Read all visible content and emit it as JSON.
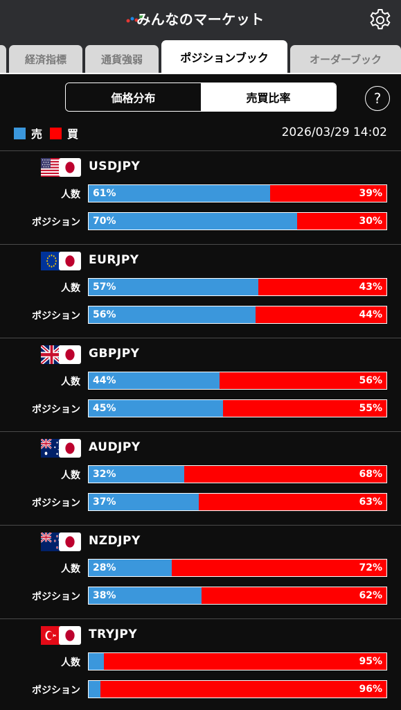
{
  "header": {
    "title": "みんなのマーケット",
    "logo_icon": "app-logo-icon",
    "settings_icon": "gear-icon"
  },
  "tabs": [
    {
      "label": "",
      "active": false
    },
    {
      "label": "経済指標",
      "active": false
    },
    {
      "label": "通貨強弱",
      "active": false
    },
    {
      "label": "ポジションブック",
      "active": true
    },
    {
      "label": "オーダーブック",
      "active": false
    }
  ],
  "segment": {
    "left": "価格分布",
    "right": "売買比率",
    "selected": "売買比率"
  },
  "help_label": "?",
  "legend": {
    "sell_label": "売",
    "buy_label": "買",
    "sell_color": "#3b97dc",
    "buy_color": "#ff0000"
  },
  "timestamp": "2026/03/29 14:02",
  "row_labels": {
    "people": "人数",
    "position": "ポジション"
  },
  "pairs": [
    {
      "name": "USDJPY",
      "flag": "us",
      "people": {
        "sell": 61,
        "buy": 39,
        "sell_text": "61%",
        "buy_text": "39%"
      },
      "position": {
        "sell": 70,
        "buy": 30,
        "sell_text": "70%",
        "buy_text": "30%"
      }
    },
    {
      "name": "EURJPY",
      "flag": "eu",
      "people": {
        "sell": 57,
        "buy": 43,
        "sell_text": "57%",
        "buy_text": "43%"
      },
      "position": {
        "sell": 56,
        "buy": 44,
        "sell_text": "56%",
        "buy_text": "44%"
      }
    },
    {
      "name": "GBPJPY",
      "flag": "gb",
      "people": {
        "sell": 44,
        "buy": 56,
        "sell_text": "44%",
        "buy_text": "56%"
      },
      "position": {
        "sell": 45,
        "buy": 55,
        "sell_text": "45%",
        "buy_text": "55%"
      }
    },
    {
      "name": "AUDJPY",
      "flag": "au",
      "people": {
        "sell": 32,
        "buy": 68,
        "sell_text": "32%",
        "buy_text": "68%"
      },
      "position": {
        "sell": 37,
        "buy": 63,
        "sell_text": "37%",
        "buy_text": "63%"
      }
    },
    {
      "name": "NZDJPY",
      "flag": "nz",
      "people": {
        "sell": 28,
        "buy": 72,
        "sell_text": "28%",
        "buy_text": "72%"
      },
      "position": {
        "sell": 38,
        "buy": 62,
        "sell_text": "38%",
        "buy_text": "62%"
      }
    },
    {
      "name": "TRYJPY",
      "flag": "tr",
      "people": {
        "sell": 5,
        "buy": 95,
        "sell_text": "",
        "buy_text": "95%"
      },
      "position": {
        "sell": 4,
        "buy": 96,
        "sell_text": "",
        "buy_text": "96%"
      }
    }
  ]
}
